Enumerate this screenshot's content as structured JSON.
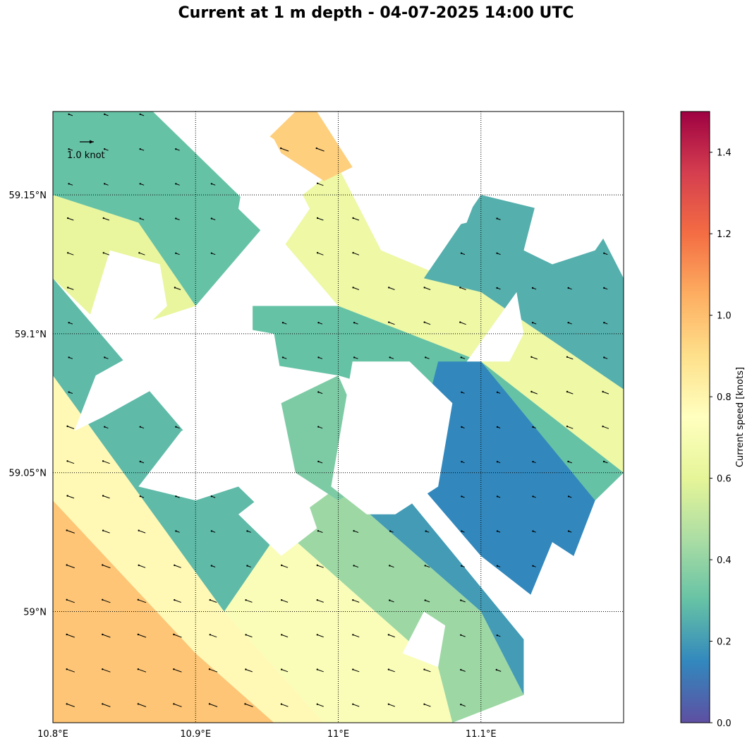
{
  "chart_data": {
    "type": "heatmap",
    "title": "Current at 1 m depth - 04-07-2025 14:00 UTC",
    "xlabel": "",
    "ylabel": "",
    "xlim": [
      10.8,
      11.2
    ],
    "ylim": [
      58.96,
      59.18
    ],
    "x_ticks": [
      10.8,
      10.9,
      11.0,
      11.1
    ],
    "x_tick_labels": [
      "10.8°E",
      "10.9°E",
      "11°E",
      "11.1°E"
    ],
    "y_ticks": [
      59.0,
      59.05,
      59.1,
      59.15
    ],
    "y_tick_labels": [
      "59°N",
      "59.05°N",
      "59.1°N",
      "59.15°N"
    ],
    "grid": "dotted",
    "quiver_key_label": "1.0 knot",
    "quiver_key_value_knots": 1.0,
    "colorbar": {
      "label": "Current speed [knots]",
      "range": [
        0.0,
        1.5
      ],
      "ticks": [
        0.0,
        0.2,
        0.4,
        0.6,
        0.8,
        1.0,
        1.2,
        1.4
      ],
      "tick_labels": [
        "0.0",
        "0.2",
        "0.4",
        "0.6",
        "0.8",
        "1.0",
        "1.2",
        "1.4"
      ],
      "colormap": [
        "#5e4fa2",
        "#3288bd",
        "#66c2a5",
        "#abdda4",
        "#e6f598",
        "#ffffbf",
        "#fee08b",
        "#fdae61",
        "#f46d43",
        "#d53e4f",
        "#9e0142"
      ]
    },
    "speed_regions": [
      {
        "name": "southwest-open-water",
        "polygon": [
          [
            10.8,
            58.96
          ],
          [
            10.8,
            59.04
          ],
          [
            10.9,
            58.985
          ],
          [
            10.955,
            58.96
          ]
        ],
        "speed": 0.98
      },
      {
        "name": "southwest-margin",
        "polygon": [
          [
            10.8,
            59.04
          ],
          [
            10.8,
            59.085
          ],
          [
            10.92,
            59.0
          ],
          [
            10.99,
            58.96
          ],
          [
            10.955,
            58.96
          ],
          [
            10.9,
            58.985
          ]
        ],
        "speed": 0.78
      },
      {
        "name": "southern-channel-inner",
        "polygon": [
          [
            10.92,
            59.0
          ],
          [
            10.96,
            59.03
          ],
          [
            11.07,
            58.98
          ],
          [
            11.08,
            58.96
          ],
          [
            10.99,
            58.96
          ]
        ],
        "speed": 0.72
      },
      {
        "name": "southern-channel-mid",
        "polygon": [
          [
            10.96,
            59.03
          ],
          [
            11.0,
            59.045
          ],
          [
            11.1,
            59.0
          ],
          [
            11.13,
            58.97
          ],
          [
            11.08,
            58.96
          ],
          [
            11.07,
            58.98
          ]
        ],
        "speed": 0.42
      },
      {
        "name": "southern-channel-outer",
        "polygon": [
          [
            11.0,
            59.045
          ],
          [
            11.05,
            59.04
          ],
          [
            11.13,
            58.99
          ],
          [
            11.13,
            58.97
          ],
          [
            11.1,
            59.0
          ]
        ],
        "speed": 0.2
      },
      {
        "name": "west-band",
        "polygon": [
          [
            10.8,
            59.085
          ],
          [
            10.8,
            59.12
          ],
          [
            10.9,
            59.06
          ],
          [
            10.96,
            59.03
          ],
          [
            10.92,
            59.0
          ]
        ],
        "speed": 0.28
      },
      {
        "name": "northwest-coast",
        "polygon": [
          [
            10.8,
            59.12
          ],
          [
            10.8,
            59.15
          ],
          [
            10.86,
            59.14
          ],
          [
            10.9,
            59.11
          ],
          [
            10.84,
            59.1
          ]
        ],
        "speed": 0.62
      },
      {
        "name": "north-band",
        "polygon": [
          [
            10.8,
            59.15
          ],
          [
            10.8,
            59.18
          ],
          [
            10.87,
            59.18
          ],
          [
            10.95,
            59.14
          ],
          [
            10.9,
            59.11
          ],
          [
            10.86,
            59.14
          ]
        ],
        "speed": 0.3
      },
      {
        "name": "central-north-channel",
        "polygon": [
          [
            10.95,
            59.14
          ],
          [
            11.0,
            59.16
          ],
          [
            11.03,
            59.13
          ],
          [
            11.1,
            59.115
          ],
          [
            11.2,
            59.08
          ],
          [
            11.2,
            59.05
          ],
          [
            11.1,
            59.09
          ],
          [
            11.0,
            59.11
          ]
        ],
        "speed": 0.65
      },
      {
        "name": "central-north-band",
        "polygon": [
          [
            10.94,
            59.11
          ],
          [
            11.0,
            59.11
          ],
          [
            11.1,
            59.09
          ],
          [
            11.2,
            59.05
          ],
          [
            11.18,
            59.04
          ],
          [
            11.1,
            59.07
          ],
          [
            11.0,
            59.085
          ],
          [
            10.94,
            59.09
          ]
        ],
        "speed": 0.3
      },
      {
        "name": "northeast-channel",
        "polygon": [
          [
            11.06,
            59.12
          ],
          [
            11.1,
            59.15
          ],
          [
            11.18,
            59.14
          ],
          [
            11.2,
            59.12
          ],
          [
            11.2,
            59.08
          ],
          [
            11.1,
            59.115
          ]
        ],
        "speed": 0.25
      },
      {
        "name": "east-band",
        "polygon": [
          [
            11.05,
            59.05
          ],
          [
            11.07,
            59.09
          ],
          [
            11.1,
            59.09
          ],
          [
            11.18,
            59.04
          ],
          [
            11.15,
            59.0
          ],
          [
            11.1,
            59.02
          ]
        ],
        "speed": 0.15
      },
      {
        "name": "central-inlet",
        "polygon": [
          [
            10.96,
            59.075
          ],
          [
            11.0,
            59.085
          ],
          [
            11.03,
            59.05
          ],
          [
            11.0,
            59.04
          ],
          [
            10.97,
            59.05
          ]
        ],
        "speed": 0.35
      },
      {
        "name": "northern-inlet-hot",
        "polygon": [
          [
            10.95,
            59.17
          ],
          [
            10.97,
            59.18
          ],
          [
            10.985,
            59.18
          ],
          [
            11.01,
            59.16
          ],
          [
            10.99,
            59.155
          ],
          [
            10.96,
            59.165
          ]
        ],
        "speed": 0.95
      }
    ],
    "land_regions": [
      {
        "name": "northwest-island",
        "polygon": [
          [
            10.825,
            59.105
          ],
          [
            10.84,
            59.13
          ],
          [
            10.875,
            59.125
          ],
          [
            10.88,
            59.11
          ],
          [
            10.86,
            59.1
          ],
          [
            10.835,
            59.1
          ]
        ]
      },
      {
        "name": "west-island",
        "polygon": [
          [
            10.815,
            59.065
          ],
          [
            10.83,
            59.085
          ],
          [
            10.9,
            59.105
          ],
          [
            10.955,
            59.1
          ],
          [
            10.96,
            59.085
          ],
          [
            10.92,
            59.08
          ],
          [
            10.87,
            59.08
          ],
          [
            10.835,
            59.07
          ]
        ]
      },
      {
        "name": "central-west-island",
        "polygon": [
          [
            10.86,
            59.045
          ],
          [
            10.89,
            59.065
          ],
          [
            10.93,
            59.075
          ],
          [
            10.955,
            59.06
          ],
          [
            10.93,
            59.045
          ],
          [
            10.9,
            59.04
          ]
        ]
      },
      {
        "name": "central-south-island",
        "polygon": [
          [
            10.93,
            59.035
          ],
          [
            10.955,
            59.045
          ],
          [
            10.975,
            59.045
          ],
          [
            10.985,
            59.03
          ],
          [
            10.96,
            59.02
          ]
        ]
      },
      {
        "name": "central-east-island",
        "polygon": [
          [
            10.995,
            59.045
          ],
          [
            11.01,
            59.09
          ],
          [
            11.05,
            59.09
          ],
          [
            11.08,
            59.075
          ],
          [
            11.07,
            59.045
          ],
          [
            11.04,
            59.035
          ],
          [
            11.02,
            59.035
          ]
        ]
      },
      {
        "name": "north-central-island",
        "polygon": [
          [
            10.93,
            59.145
          ],
          [
            10.94,
            59.175
          ],
          [
            10.955,
            59.17
          ],
          [
            10.98,
            59.145
          ],
          [
            10.96,
            59.13
          ]
        ]
      },
      {
        "name": "north-island",
        "polygon": [
          [
            11.01,
            59.15
          ],
          [
            11.035,
            59.18
          ],
          [
            11.09,
            59.18
          ],
          [
            11.105,
            59.16
          ],
          [
            11.09,
            59.14
          ],
          [
            11.05,
            59.135
          ]
        ]
      },
      {
        "name": "northeast-island",
        "polygon": [
          [
            11.13,
            59.13
          ],
          [
            11.145,
            59.16
          ],
          [
            11.18,
            59.17
          ],
          [
            11.2,
            59.165
          ],
          [
            11.2,
            59.145
          ],
          [
            11.18,
            59.13
          ],
          [
            11.15,
            59.125
          ]
        ]
      },
      {
        "name": "east-island",
        "polygon": [
          [
            11.09,
            59.09
          ],
          [
            11.125,
            59.115
          ],
          [
            11.13,
            59.1
          ],
          [
            11.12,
            59.09
          ]
        ]
      },
      {
        "name": "southeast-island",
        "polygon": [
          [
            11.13,
            59.0
          ],
          [
            11.15,
            59.025
          ],
          [
            11.195,
            59.01
          ],
          [
            11.2,
            58.985
          ],
          [
            11.175,
            58.975
          ],
          [
            11.15,
            58.985
          ]
        ]
      },
      {
        "name": "south-east-islet",
        "polygon": [
          [
            11.045,
            58.985
          ],
          [
            11.06,
            59.0
          ],
          [
            11.075,
            58.995
          ],
          [
            11.07,
            58.98
          ]
        ]
      }
    ],
    "vector_grid": {
      "lon_step": 0.025,
      "lat_step": 0.0125,
      "direction_deg": 160
    }
  }
}
